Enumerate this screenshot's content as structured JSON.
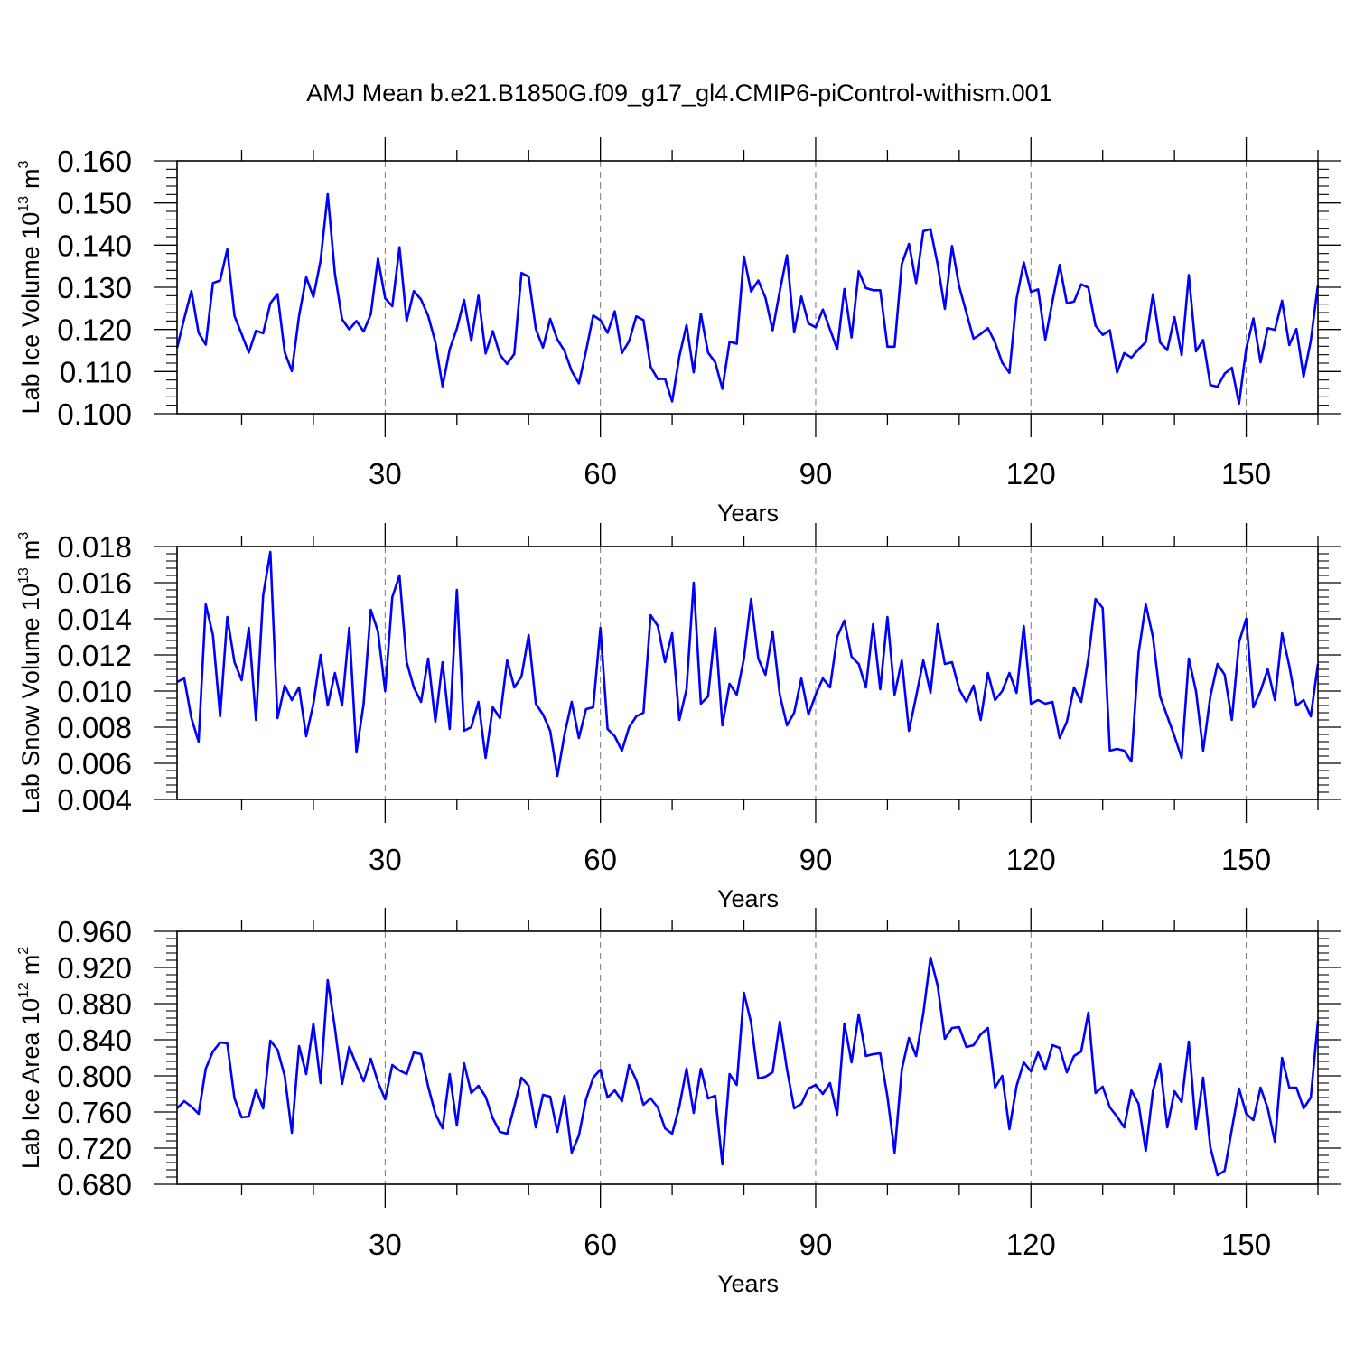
{
  "chart_data": [
    {
      "type": "line",
      "title": "AMJ Mean b.e21.B1850G.f09_g17_gl4.CMIP6-piControl-withism.001",
      "xlabel": "Years",
      "ylabel_text": "Lab Ice Volume 10",
      "ylabel_exp": "13",
      "ylabel_unit": "m",
      "ylabel_unit_exp": "3",
      "xlim": [
        1,
        160
      ],
      "xticks": [
        "30",
        "60",
        "90",
        "120",
        "150"
      ],
      "ylim": [
        0.1,
        0.16
      ],
      "yticks": [
        "0.100",
        "0.110",
        "0.120",
        "0.130",
        "0.140",
        "0.150",
        "0.160"
      ],
      "grid": "dashed vertical at major x ticks",
      "series": [
        {
          "name": "Lab Ice Volume",
          "color": "#0000ff",
          "values": [
            0.1156,
            0.1226,
            0.1291,
            0.1192,
            0.1164,
            0.131,
            0.1316,
            0.139,
            0.1232,
            0.1189,
            0.1145,
            0.1197,
            0.1191,
            0.1262,
            0.1284,
            0.1146,
            0.1101,
            0.1232,
            0.1324,
            0.1277,
            0.1363,
            0.1521,
            0.1332,
            0.1224,
            0.12,
            0.122,
            0.1195,
            0.1236,
            0.1368,
            0.1274,
            0.1255,
            0.1395,
            0.122,
            0.1291,
            0.1271,
            0.1232,
            0.117,
            0.1065,
            0.1153,
            0.1202,
            0.127,
            0.1173,
            0.128,
            0.1143,
            0.1196,
            0.114,
            0.1118,
            0.1142,
            0.1334,
            0.1325,
            0.1201,
            0.1157,
            0.1225,
            0.1176,
            0.1149,
            0.1101,
            0.1072,
            0.1149,
            0.1233,
            0.1222,
            0.1192,
            0.1243,
            0.1144,
            0.1172,
            0.1231,
            0.1222,
            0.1111,
            0.1082,
            0.1083,
            0.1029,
            0.1136,
            0.121,
            0.1098,
            0.1237,
            0.1145,
            0.1122,
            0.1059,
            0.1171,
            0.1166,
            0.1373,
            0.129,
            0.1316,
            0.1275,
            0.1198,
            0.1291,
            0.1376,
            0.1193,
            0.1278,
            0.1214,
            0.1205,
            0.1247,
            0.12,
            0.1153,
            0.1296,
            0.1181,
            0.1338,
            0.1298,
            0.1293,
            0.1293,
            0.1159,
            0.1159,
            0.1355,
            0.1403,
            0.131,
            0.1433,
            0.1438,
            0.1354,
            0.1249,
            0.1398,
            0.1302,
            0.124,
            0.1178,
            0.1189,
            0.1203,
            0.1169,
            0.1121,
            0.1097,
            0.1273,
            0.1359,
            0.1289,
            0.1295,
            0.1176,
            0.1267,
            0.1353,
            0.1262,
            0.1266,
            0.1307,
            0.1299,
            0.1209,
            0.1187,
            0.1198,
            0.1098,
            0.1144,
            0.1133,
            0.1153,
            0.117,
            0.1283,
            0.1169,
            0.1151,
            0.1229,
            0.1139,
            0.1329,
            0.1148,
            0.1175,
            0.1068,
            0.1064,
            0.1095,
            0.1109,
            0.1024,
            0.1154,
            0.1226,
            0.1122,
            0.1203,
            0.1199,
            0.1268,
            0.1163,
            0.1201,
            0.1088,
            0.1173,
            0.1306
          ]
        }
      ]
    },
    {
      "type": "line",
      "xlabel": "Years",
      "ylabel_text": "Lab Snow Volume 10",
      "ylabel_exp": "13",
      "ylabel_unit": "m",
      "ylabel_unit_exp": "3",
      "xlim": [
        1,
        160
      ],
      "xticks": [
        "30",
        "60",
        "90",
        "120",
        "150"
      ],
      "ylim": [
        0.004,
        0.018
      ],
      "yticks": [
        "0.004",
        "0.006",
        "0.008",
        "0.010",
        "0.012",
        "0.014",
        "0.016",
        "0.018"
      ],
      "grid": "dashed vertical at major x ticks",
      "series": [
        {
          "name": "Lab Snow Volume",
          "color": "#0000ff",
          "values": [
            0.0105,
            0.0107,
            0.0085,
            0.0072,
            0.0148,
            0.0131,
            0.0086,
            0.0141,
            0.0116,
            0.0106,
            0.0135,
            0.0084,
            0.0153,
            0.0177,
            0.0085,
            0.0103,
            0.0095,
            0.0102,
            0.0075,
            0.0093,
            0.012,
            0.0092,
            0.011,
            0.0092,
            0.0135,
            0.0066,
            0.0093,
            0.0145,
            0.0133,
            0.01,
            0.0152,
            0.0164,
            0.0116,
            0.0102,
            0.0094,
            0.0118,
            0.0083,
            0.0116,
            0.0079,
            0.0156,
            0.0078,
            0.008,
            0.0094,
            0.0063,
            0.0091,
            0.0085,
            0.0117,
            0.0102,
            0.0108,
            0.0131,
            0.0093,
            0.0087,
            0.0078,
            0.0053,
            0.0076,
            0.0094,
            0.0074,
            0.009,
            0.0091,
            0.0135,
            0.0079,
            0.0075,
            0.0067,
            0.008,
            0.0086,
            0.0088,
            0.0142,
            0.0136,
            0.0116,
            0.0132,
            0.0084,
            0.0101,
            0.016,
            0.0093,
            0.0097,
            0.0135,
            0.0081,
            0.0104,
            0.0098,
            0.0118,
            0.0151,
            0.0118,
            0.0109,
            0.0133,
            0.0098,
            0.0081,
            0.0088,
            0.0107,
            0.0087,
            0.0098,
            0.0107,
            0.0102,
            0.013,
            0.0139,
            0.0119,
            0.0115,
            0.0102,
            0.0137,
            0.0101,
            0.0141,
            0.0098,
            0.0117,
            0.0078,
            0.0097,
            0.0117,
            0.0099,
            0.0137,
            0.0115,
            0.0116,
            0.0101,
            0.0094,
            0.0103,
            0.0084,
            0.011,
            0.0095,
            0.01,
            0.011,
            0.0099,
            0.0136,
            0.0093,
            0.0095,
            0.0093,
            0.0094,
            0.0074,
            0.0083,
            0.0102,
            0.0094,
            0.0118,
            0.0151,
            0.0146,
            0.0067,
            0.0068,
            0.0067,
            0.0061,
            0.0121,
            0.0148,
            0.013,
            0.0097,
            0.0086,
            0.0075,
            0.0063,
            0.0118,
            0.01,
            0.0067,
            0.0097,
            0.0115,
            0.0109,
            0.0084,
            0.0127,
            0.014,
            0.0091,
            0.01,
            0.0112,
            0.0095,
            0.0132,
            0.0114,
            0.0092,
            0.0095,
            0.0086,
            0.0115
          ]
        }
      ]
    },
    {
      "type": "line",
      "xlabel": "Years",
      "ylabel_text": "Lab Ice Area 10",
      "ylabel_exp": "12",
      "ylabel_unit": "m",
      "ylabel_unit_exp": "2",
      "xlim": [
        1,
        160
      ],
      "xticks": [
        "30",
        "60",
        "90",
        "120",
        "150"
      ],
      "ylim": [
        0.68,
        0.96
      ],
      "yticks": [
        "0.680",
        "0.720",
        "0.760",
        "0.800",
        "0.840",
        "0.880",
        "0.920",
        "0.960"
      ],
      "grid": "dashed vertical at major x ticks",
      "series": [
        {
          "name": "Lab Ice Area",
          "color": "#0000ff",
          "values": [
            0.764,
            0.772,
            0.766,
            0.758,
            0.808,
            0.827,
            0.837,
            0.836,
            0.775,
            0.754,
            0.755,
            0.785,
            0.764,
            0.839,
            0.829,
            0.8,
            0.737,
            0.833,
            0.802,
            0.858,
            0.792,
            0.906,
            0.853,
            0.791,
            0.832,
            0.812,
            0.794,
            0.819,
            0.793,
            0.774,
            0.812,
            0.806,
            0.802,
            0.826,
            0.824,
            0.788,
            0.758,
            0.742,
            0.802,
            0.745,
            0.814,
            0.781,
            0.789,
            0.777,
            0.753,
            0.738,
            0.736,
            0.766,
            0.798,
            0.789,
            0.743,
            0.779,
            0.777,
            0.738,
            0.778,
            0.715,
            0.734,
            0.774,
            0.798,
            0.807,
            0.776,
            0.784,
            0.772,
            0.812,
            0.795,
            0.768,
            0.775,
            0.765,
            0.742,
            0.736,
            0.766,
            0.808,
            0.759,
            0.808,
            0.775,
            0.778,
            0.702,
            0.802,
            0.79,
            0.892,
            0.859,
            0.797,
            0.799,
            0.804,
            0.86,
            0.807,
            0.764,
            0.769,
            0.786,
            0.79,
            0.78,
            0.792,
            0.757,
            0.858,
            0.815,
            0.868,
            0.822,
            0.824,
            0.825,
            0.777,
            0.715,
            0.807,
            0.842,
            0.822,
            0.869,
            0.931,
            0.9,
            0.841,
            0.853,
            0.854,
            0.832,
            0.834,
            0.846,
            0.853,
            0.787,
            0.8,
            0.741,
            0.789,
            0.815,
            0.805,
            0.826,
            0.807,
            0.834,
            0.831,
            0.804,
            0.822,
            0.827,
            0.87,
            0.781,
            0.788,
            0.765,
            0.755,
            0.743,
            0.784,
            0.769,
            0.717,
            0.783,
            0.813,
            0.743,
            0.783,
            0.771,
            0.838,
            0.741,
            0.798,
            0.721,
            0.69,
            0.695,
            0.741,
            0.786,
            0.758,
            0.751,
            0.787,
            0.764,
            0.727,
            0.82,
            0.787,
            0.787,
            0.764,
            0.776,
            0.861
          ]
        }
      ]
    }
  ]
}
